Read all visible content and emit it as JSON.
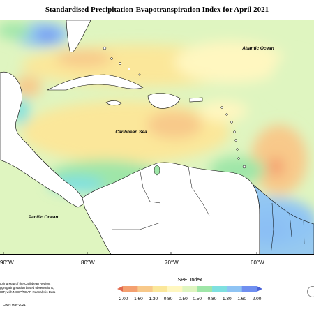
{
  "title": "Standardised Precipitation-Evapotranspiration Index for April 2021",
  "map": {
    "labels": {
      "atlantic": "Atlantic Ocean",
      "caribbean": "Caribbean Sea",
      "pacific": "Pacific Ocean"
    },
    "longitudes": [
      "90°W",
      "80°W",
      "70°W",
      "60°W"
    ]
  },
  "footer": {
    "note_lines": [
      "toring Map of the Caribbean Region.",
      "ggregating station based observations,",
      "IOF, with NCEP/NCAR Reanalysis Data"
    ],
    "credit": "CIMH May-2021"
  },
  "legend": {
    "title": "SPEI Index",
    "ticks": [
      "-2.00",
      "-1.60",
      "-1.30",
      "-0.80",
      "-0.50",
      "0.50",
      "0.80",
      "1.30",
      "1.60",
      "2.00"
    ],
    "colors": [
      "#e26a4e",
      "#f4a070",
      "#f8c98a",
      "#fbe79a",
      "#fff7c0",
      "#dff5c0",
      "#9fe6a8",
      "#7fe0e0",
      "#8fc4f4",
      "#6f8ff0",
      "#4a62d8"
    ]
  }
}
